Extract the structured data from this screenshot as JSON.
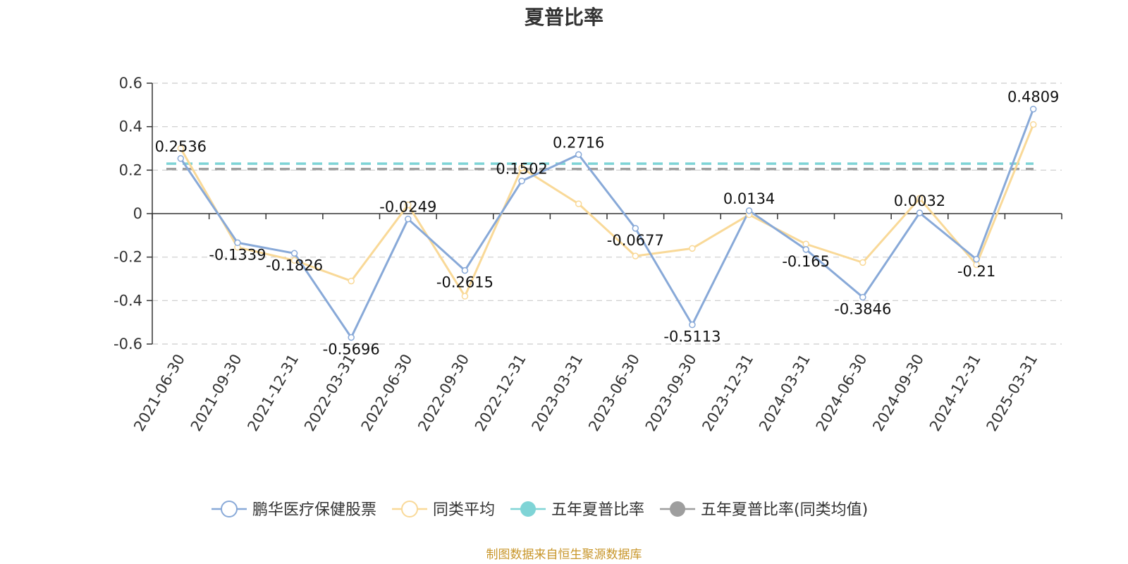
{
  "chart_data": {
    "type": "line",
    "title": "夏普比率",
    "categories": [
      "2021-06-30",
      "2021-09-30",
      "2021-12-31",
      "2022-03-31",
      "2022-06-30",
      "2022-09-30",
      "2022-12-31",
      "2023-03-31",
      "2023-06-30",
      "2023-09-30",
      "2023-12-31",
      "2024-03-31",
      "2024-06-30",
      "2024-09-30",
      "2024-12-31",
      "2025-03-31"
    ],
    "y_ticks": [
      "0.6",
      "0.4",
      "0.2",
      "0",
      "-0.2",
      "-0.4",
      "-0.6"
    ],
    "ylim": [
      -0.6,
      0.6
    ],
    "grid": true,
    "legend_position": "bottom-center",
    "series": [
      {
        "name": "鹏华医疗保健股票",
        "color": "#88a9d8",
        "data_labels": true,
        "values": [
          0.2536,
          -0.1339,
          -0.1826,
          -0.5696,
          -0.0249,
          -0.2615,
          0.1502,
          0.2716,
          -0.0677,
          -0.5113,
          0.0134,
          -0.165,
          -0.3846,
          0.0032,
          -0.21,
          0.4809
        ]
      },
      {
        "name": "同类平均",
        "color": "#f9d998",
        "data_labels": false,
        "values": [
          0.3,
          -0.155,
          -0.215,
          -0.31,
          0.04,
          -0.38,
          0.21,
          0.045,
          -0.195,
          -0.16,
          -0.005,
          -0.14,
          -0.225,
          0.07,
          -0.235,
          0.41
        ]
      },
      {
        "name": "五年夏普比率",
        "color": "#7fd4d6",
        "type": "reference_line",
        "value": 0.23
      },
      {
        "name": "五年夏普比率(同类均值)",
        "color": "#9e9e9e",
        "type": "reference_line",
        "value": 0.205
      }
    ],
    "data_labels": [
      "0.2536",
      "-0.1339",
      "-0.1826",
      "-0.5696",
      "-0.0249",
      "-0.2615",
      "0.1502",
      "0.2716",
      "-0.0677",
      "-0.5113",
      "0.0134",
      "-0.165",
      "-0.3846",
      "0.0032",
      "-0.21",
      "0.4809"
    ]
  },
  "source": "制图数据来自恒生聚源数据库"
}
